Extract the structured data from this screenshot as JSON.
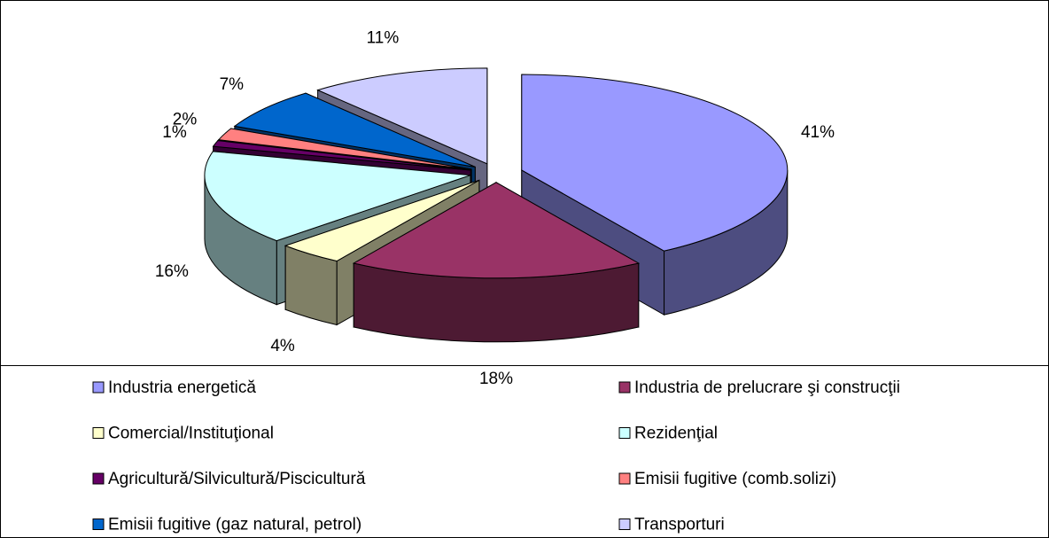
{
  "chart_data": {
    "type": "pie",
    "categories": [
      "Industria energetică",
      "Industria de prelucrare şi construcţii",
      "Comercial/Instituţional",
      "Rezidenţial",
      "Agricultură/Silvicultură/Piscicultură",
      "Emisii fugitive (comb.solizi)",
      "Emisii fugitive (gaz natural, petrol)",
      "Transporturi"
    ],
    "values": [
      41,
      18,
      4,
      16,
      1,
      2,
      7,
      11
    ],
    "value_labels": [
      "41%",
      "18%",
      "4%",
      "16%",
      "1%",
      "2%",
      "7%",
      "11%"
    ],
    "colors": [
      "#9999ff",
      "#993366",
      "#ffffcc",
      "#ccffff",
      "#660066",
      "#ff8080",
      "#0066cc",
      "#ccccff"
    ]
  }
}
